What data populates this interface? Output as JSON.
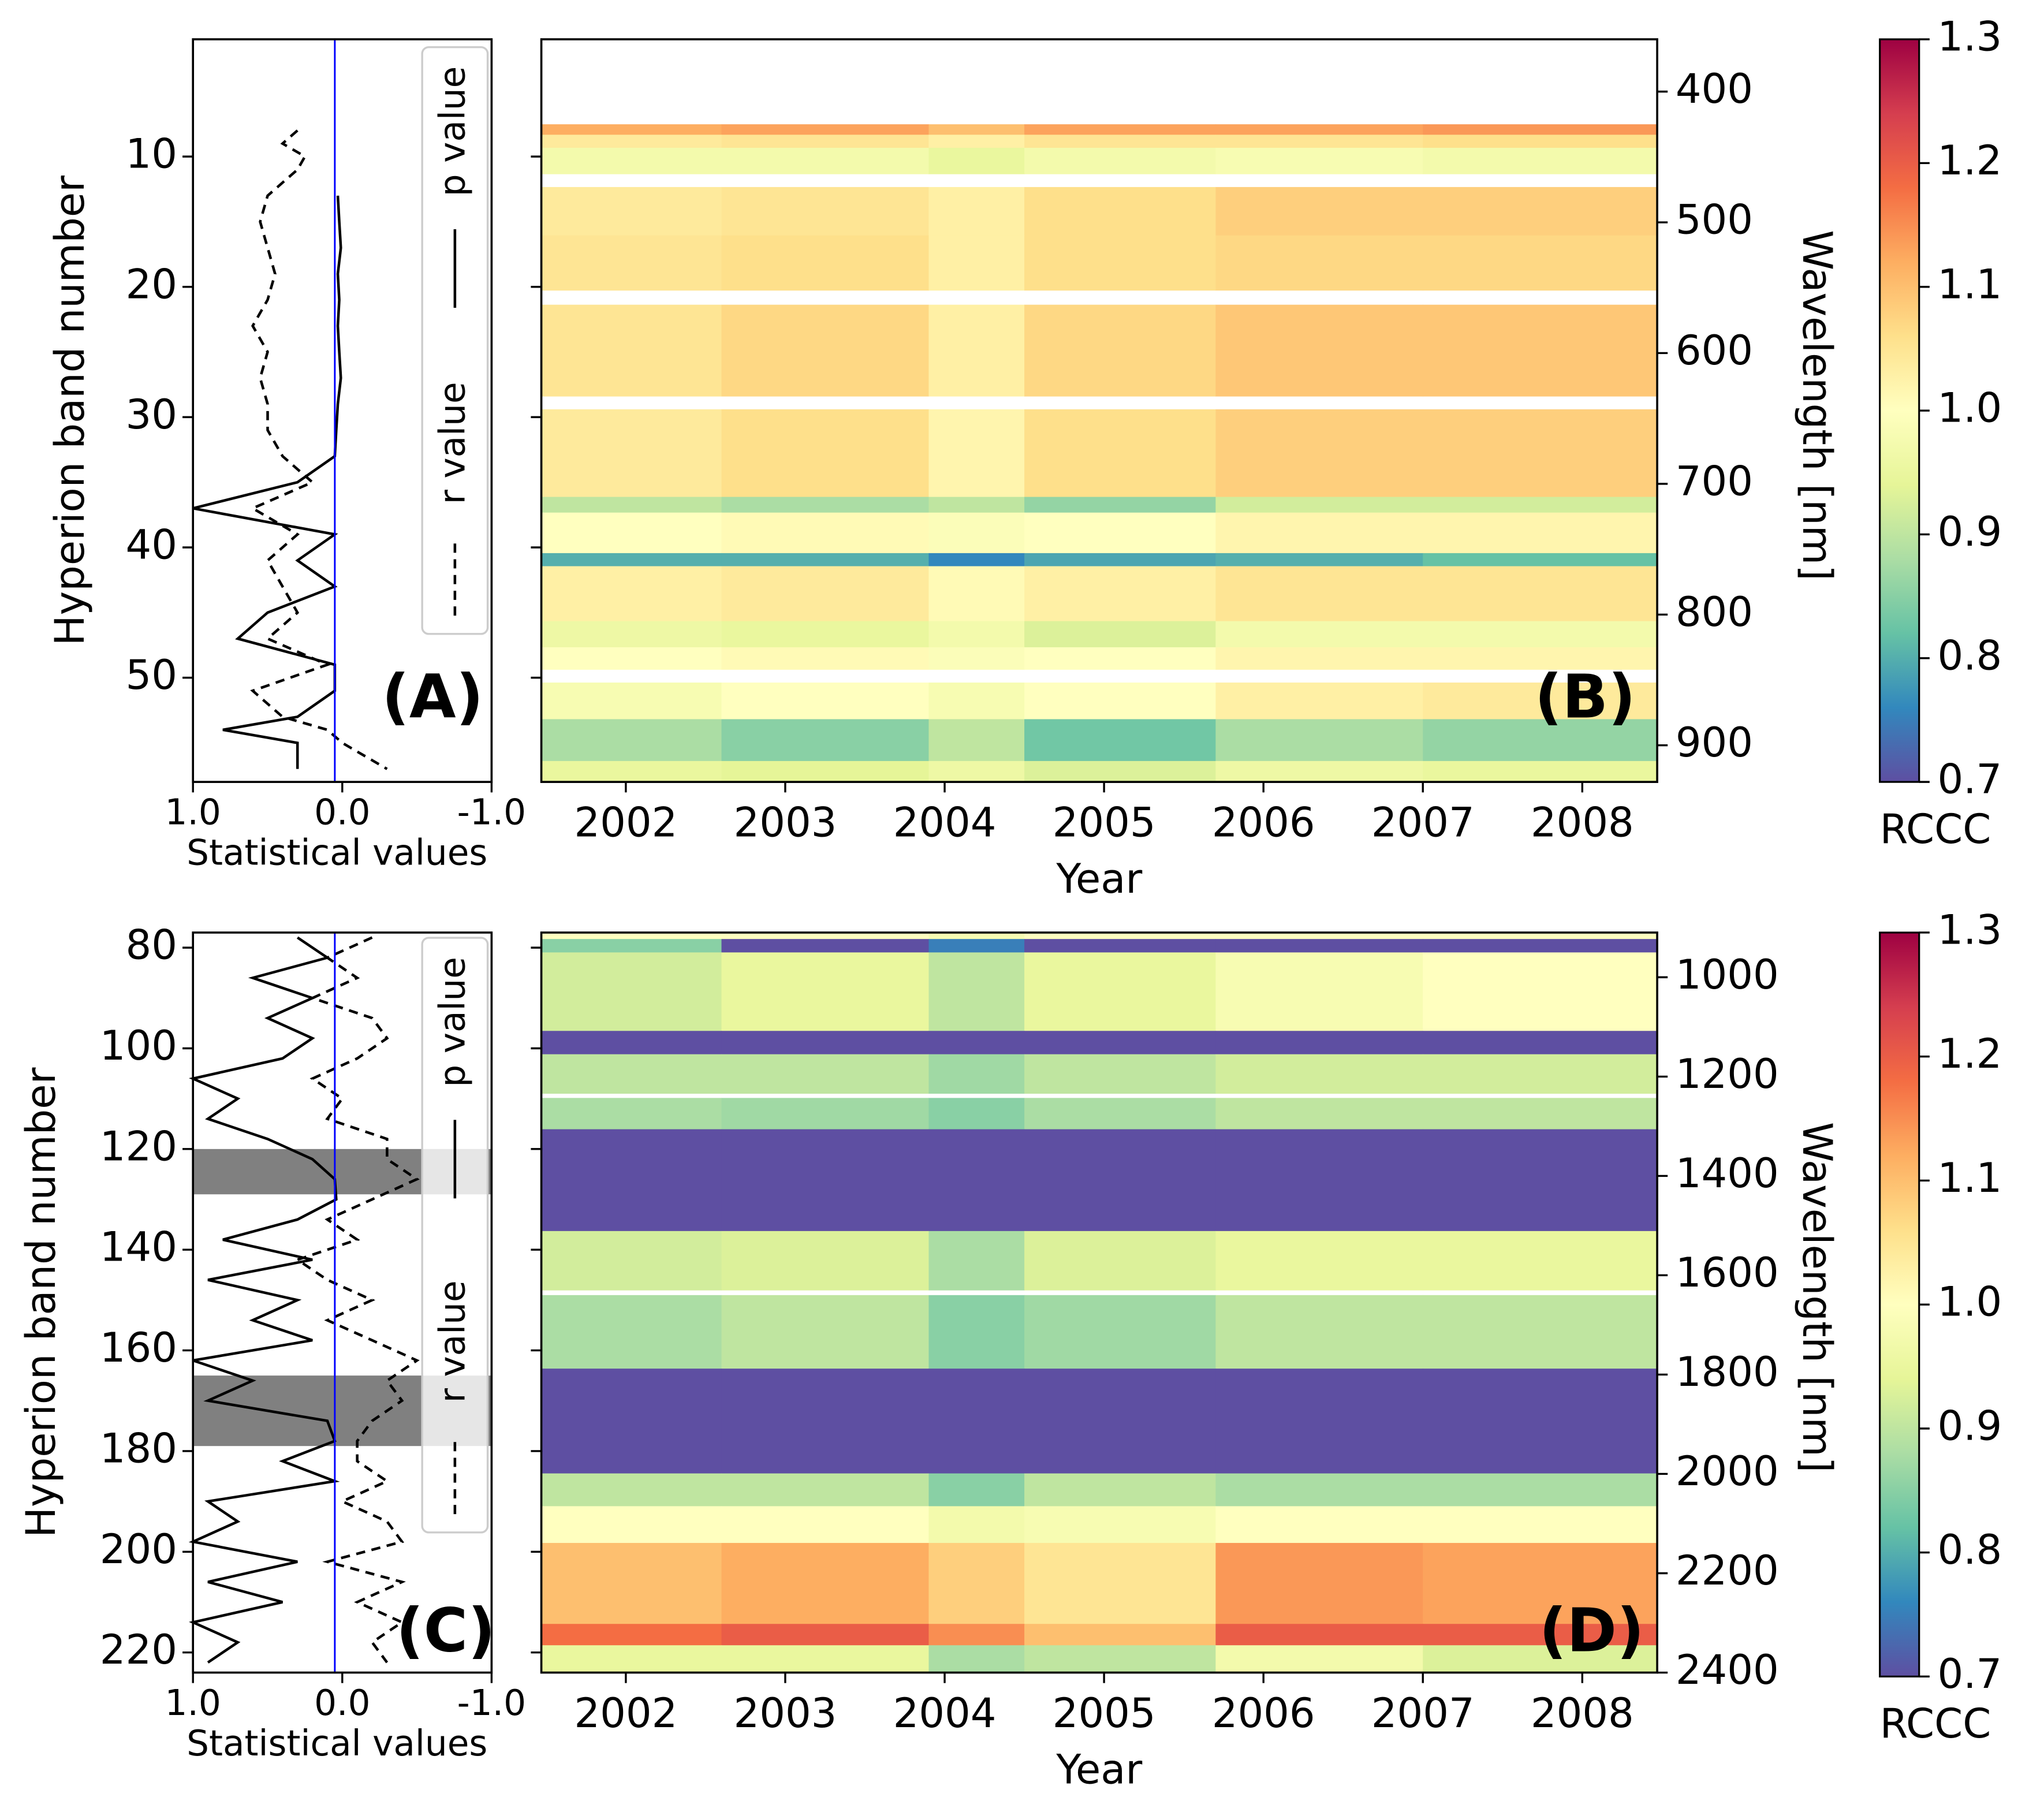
{
  "chart_data": [
    {
      "type": "line",
      "orientation": "horizontal",
      "annotation": "(A)",
      "xlabel": "Statistical values",
      "ylabel": "Hyperion band number",
      "xlim": [
        1,
        -1
      ],
      "xticks": [
        {
          "value": 1,
          "label": "1.0"
        },
        {
          "value": 0,
          "label": "0.0"
        },
        {
          "value": -1,
          "label": "-1.0"
        }
      ],
      "ylim": [
        58,
        1
      ],
      "yticks": [
        10,
        20,
        30,
        40,
        50
      ],
      "y": [
        8,
        9,
        10,
        11,
        13,
        15,
        17,
        19,
        21,
        23,
        25,
        27,
        29,
        31,
        33,
        35,
        37,
        39,
        41,
        43,
        45,
        47,
        49,
        51,
        53,
        54,
        55,
        57
      ],
      "series": [
        {
          "name": "p value",
          "color": "#000000",
          "dash": false,
          "values": [
            null,
            null,
            null,
            null,
            0.03,
            0.02,
            0.01,
            0.03,
            0.02,
            0.03,
            0.02,
            0.01,
            0.03,
            0.04,
            0.05,
            0.3,
            1.0,
            0.05,
            0.3,
            0.05,
            0.5,
            0.7,
            0.05,
            0.05,
            0.3,
            0.8,
            0.3,
            0.3
          ]
        },
        {
          "name": "r value",
          "color": "#000000",
          "dash": true,
          "values": [
            0.3,
            0.4,
            0.25,
            0.3,
            0.5,
            0.55,
            0.5,
            0.45,
            0.5,
            0.6,
            0.5,
            0.55,
            0.5,
            0.5,
            0.4,
            0.2,
            0.6,
            0.3,
            0.5,
            0.4,
            0.3,
            0.5,
            0.1,
            0.6,
            0.4,
            0.1,
            0.0,
            -0.3
          ]
        }
      ],
      "reference_x": 0.05,
      "reference_color": "#0000ff",
      "legend": "upper right"
    },
    {
      "type": "heatmap",
      "annotation": "(B)",
      "xlabel": "Year",
      "ylabel": "Wavelength [nm]",
      "xlim": [
        2001.47,
        2008.47
      ],
      "xticks": [
        2002,
        2003,
        2004,
        2005,
        2006,
        2007,
        2008
      ],
      "ylim": [
        928,
        360
      ],
      "yticks": [
        400,
        500,
        600,
        700,
        800,
        900
      ],
      "time_edges": [
        2001.47,
        2002.6,
        2003.9,
        2004.5,
        2005.7,
        2007.0,
        2008.47
      ],
      "rows": [
        {
          "range": [
            425,
            433
          ],
          "values": [
            1.12,
            1.13,
            1.1,
            1.13,
            1.13,
            1.14
          ]
        },
        {
          "range": [
            433,
            443
          ],
          "values": [
            1.04,
            1.05,
            1.03,
            1.05,
            1.05,
            1.06
          ]
        },
        {
          "range": [
            443,
            463
          ],
          "values": [
            0.97,
            0.97,
            0.95,
            0.97,
            0.98,
            0.97
          ]
        },
        {
          "range": [
            473,
            510
          ],
          "values": [
            1.04,
            1.05,
            1.03,
            1.06,
            1.08,
            1.08
          ]
        },
        {
          "range": [
            510,
            552
          ],
          "values": [
            1.05,
            1.06,
            1.03,
            1.06,
            1.07,
            1.07
          ]
        },
        {
          "range": [
            563,
            633
          ],
          "values": [
            1.05,
            1.07,
            1.03,
            1.07,
            1.09,
            1.09
          ]
        },
        {
          "range": [
            643,
            710
          ],
          "values": [
            1.04,
            1.06,
            1.02,
            1.06,
            1.08,
            1.08
          ]
        },
        {
          "range": [
            710,
            722
          ],
          "values": [
            0.9,
            0.88,
            0.9,
            0.86,
            0.92,
            0.92
          ]
        },
        {
          "range": [
            722,
            753
          ],
          "values": [
            1.0,
            1.01,
            0.99,
            1.0,
            1.02,
            1.02
          ]
        },
        {
          "range": [
            753,
            763
          ],
          "values": [
            0.8,
            0.8,
            0.76,
            0.79,
            0.8,
            0.82
          ]
        },
        {
          "range": [
            763,
            805
          ],
          "values": [
            1.03,
            1.04,
            1.01,
            1.03,
            1.05,
            1.05
          ]
        },
        {
          "range": [
            805,
            825
          ],
          "values": [
            0.96,
            0.95,
            0.97,
            0.93,
            0.97,
            0.97
          ]
        },
        {
          "range": [
            825,
            842
          ],
          "values": [
            1.0,
            1.01,
            0.99,
            1.0,
            1.02,
            1.02
          ]
        },
        {
          "range": [
            852,
            880
          ],
          "values": [
            0.98,
            1.0,
            0.98,
            1.0,
            1.03,
            1.04
          ]
        },
        {
          "range": [
            880,
            912
          ],
          "values": [
            0.88,
            0.85,
            0.9,
            0.83,
            0.88,
            0.86
          ]
        },
        {
          "range": [
            912,
            928
          ],
          "values": [
            0.95,
            0.94,
            0.96,
            0.93,
            0.96,
            0.95
          ]
        }
      ],
      "colorbar": {
        "label": "RCCC",
        "lim": [
          0.7,
          1.3
        ],
        "ticks": [
          0.7,
          0.8,
          0.9,
          {
            "value": 1,
            "label": "1.0"
          },
          1.1,
          1.2,
          1.3
        ],
        "colors": [
          "#5e4fa2",
          "#3288bd",
          "#66c2a5",
          "#abdda4",
          "#e6f598",
          "#ffffbf",
          "#fee08b",
          "#fdae61",
          "#f46d43",
          "#d53e4f",
          "#9e0142"
        ]
      }
    },
    {
      "type": "line",
      "orientation": "horizontal",
      "annotation": "(C)",
      "xlabel": "Statistical values",
      "ylabel": "Hyperion band number",
      "xlim": [
        1,
        -1
      ],
      "xticks": [
        {
          "value": 1,
          "label": "1.0"
        },
        {
          "value": 0,
          "label": "0.0"
        },
        {
          "value": -1,
          "label": "-1.0"
        }
      ],
      "ylim": [
        224,
        77
      ],
      "yticks": [
        80,
        100,
        120,
        140,
        160,
        180,
        200,
        220
      ],
      "y": [
        78,
        82,
        86,
        90,
        94,
        98,
        102,
        106,
        110,
        114,
        118,
        122,
        126,
        130,
        134,
        138,
        142,
        146,
        150,
        154,
        158,
        162,
        166,
        170,
        174,
        178,
        182,
        186,
        190,
        194,
        198,
        202,
        206,
        210,
        214,
        218,
        222
      ],
      "series": [
        {
          "name": "p value",
          "color": "#000000",
          "dash": false,
          "values": [
            0.3,
            0.1,
            0.6,
            0.2,
            0.5,
            0.2,
            0.4,
            1.0,
            0.7,
            0.9,
            0.5,
            0.2,
            0.05,
            0.04,
            0.3,
            0.8,
            0.2,
            0.9,
            0.3,
            0.6,
            0.2,
            1.0,
            0.6,
            0.9,
            0.1,
            0.05,
            0.4,
            0.05,
            0.9,
            0.7,
            1.0,
            0.3,
            0.9,
            0.4,
            1.0,
            0.7,
            0.9
          ]
        },
        {
          "name": "r value",
          "color": "#000000",
          "dash": true,
          "values": [
            -0.2,
            0.1,
            -0.1,
            0.2,
            -0.2,
            -0.3,
            -0.1,
            0.2,
            0.0,
            0.1,
            -0.3,
            -0.3,
            -0.5,
            -0.2,
            0.1,
            -0.1,
            0.3,
            0.1,
            -0.2,
            0.1,
            -0.2,
            -0.5,
            -0.3,
            -0.4,
            -0.2,
            -0.1,
            -0.1,
            -0.3,
            0.0,
            -0.3,
            -0.4,
            0.1,
            -0.4,
            -0.1,
            -0.4,
            -0.2,
            -0.3
          ]
        }
      ],
      "shaded_ranges": [
        [
          120,
          129
        ],
        [
          165,
          179
        ]
      ],
      "shade_color": "#808080",
      "reference_x": 0.05,
      "reference_color": "#0000ff",
      "legend": "upper right"
    },
    {
      "type": "heatmap",
      "annotation": "(D)",
      "xlabel": "Year",
      "ylabel": "Wavelength [nm]",
      "xlim": [
        2001.47,
        2008.47
      ],
      "xticks": [
        2002,
        2003,
        2004,
        2005,
        2006,
        2007,
        2008
      ],
      "ylim": [
        2400,
        910
      ],
      "yticks": [
        1000,
        1200,
        1400,
        1600,
        1800,
        2000,
        2200,
        2400
      ],
      "time_edges": [
        2001.47,
        2002.6,
        2003.9,
        2004.5,
        2005.7,
        2007.0,
        2008.47
      ],
      "rows": [
        {
          "range": [
            910,
            923
          ],
          "values": [
            1.0,
            1.0,
            0.98,
            1.0,
            1.0,
            1.0
          ]
        },
        {
          "range": [
            923,
            950
          ],
          "values": [
            0.85,
            0.6,
            0.75,
            0.6,
            0.65,
            0.65
          ]
        },
        {
          "range": [
            950,
            1108
          ],
          "values": [
            0.92,
            0.95,
            0.9,
            0.95,
            0.98,
            1.0
          ]
        },
        {
          "range": [
            1108,
            1155
          ],
          "values": [
            0.65,
            0.65,
            0.65,
            0.65,
            0.65,
            0.65
          ]
        },
        {
          "range": [
            1155,
            1234
          ],
          "values": [
            0.9,
            0.9,
            0.87,
            0.9,
            0.92,
            0.92
          ]
        },
        {
          "range": [
            1243,
            1306
          ],
          "values": [
            0.88,
            0.87,
            0.85,
            0.88,
            0.9,
            0.9
          ]
        },
        {
          "range": [
            1306,
            1511
          ],
          "values": [
            0.6,
            0.6,
            0.6,
            0.6,
            0.6,
            0.6
          ]
        },
        {
          "range": [
            1511,
            1630
          ],
          "values": [
            0.92,
            0.93,
            0.88,
            0.93,
            0.95,
            0.95
          ]
        },
        {
          "range": [
            1640,
            1788
          ],
          "values": [
            0.88,
            0.9,
            0.85,
            0.87,
            0.9,
            0.9
          ]
        },
        {
          "range": [
            1788,
            1999
          ],
          "values": [
            0.6,
            0.6,
            0.6,
            0.6,
            0.6,
            0.6
          ]
        },
        {
          "range": [
            1999,
            2065
          ],
          "values": [
            0.9,
            0.9,
            0.85,
            0.9,
            0.88,
            0.88
          ]
        },
        {
          "range": [
            2065,
            2139
          ],
          "values": [
            1.0,
            1.0,
            0.97,
            0.98,
            1.0,
            1.0
          ]
        },
        {
          "range": [
            2139,
            2302
          ],
          "values": [
            1.1,
            1.12,
            1.08,
            1.05,
            1.14,
            1.13
          ]
        },
        {
          "range": [
            2302,
            2345
          ],
          "values": [
            1.18,
            1.2,
            1.15,
            1.1,
            1.2,
            1.2
          ]
        },
        {
          "range": [
            2345,
            2400
          ],
          "values": [
            0.95,
            0.95,
            0.88,
            0.9,
            0.97,
            0.93
          ]
        }
      ],
      "colorbar": {
        "label": "RCCC",
        "lim": [
          0.7,
          1.3
        ],
        "ticks": [
          0.7,
          0.8,
          0.9,
          {
            "value": 1,
            "label": "1.0"
          },
          1.1,
          1.2,
          1.3
        ],
        "colors": [
          "#5e4fa2",
          "#3288bd",
          "#66c2a5",
          "#abdda4",
          "#e6f598",
          "#ffffbf",
          "#fee08b",
          "#fdae61",
          "#f46d43",
          "#d53e4f",
          "#9e0142"
        ]
      }
    }
  ]
}
